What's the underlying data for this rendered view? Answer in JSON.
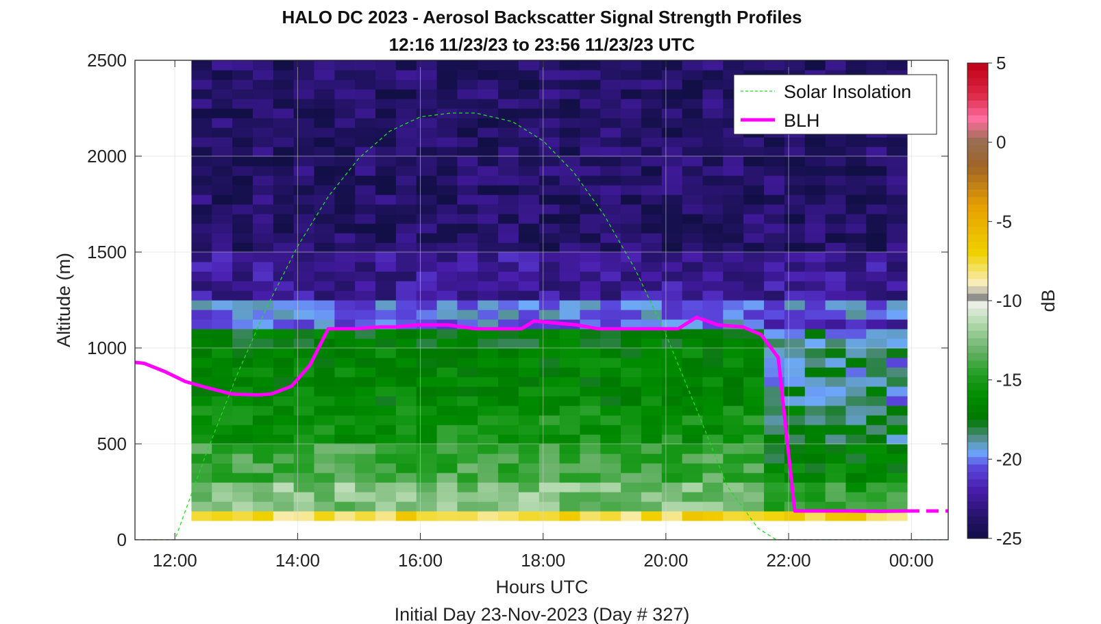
{
  "chart_data": {
    "type": "heatmap",
    "title": "HALO DC 2023 - Aerosol Backscatter Signal Strength Profiles",
    "subtitle": "12:16 11/23/23 to 23:56 11/23/23  UTC",
    "xlabel": "Hours UTC",
    "footer": "Initial Day 23-Nov-2023 (Day # 327)",
    "ylabel": "Altitude (m)",
    "colorbar_label": "dB",
    "xlim_hours": [
      11.35,
      24.6
    ],
    "ylim": [
      0,
      2500
    ],
    "clim": [
      -25,
      5
    ],
    "x_ticks": [
      {
        "value": 12,
        "label": "12:00"
      },
      {
        "value": 14,
        "label": "14:00"
      },
      {
        "value": 16,
        "label": "16:00"
      },
      {
        "value": 18,
        "label": "18:00"
      },
      {
        "value": 20,
        "label": "20:00"
      },
      {
        "value": 22,
        "label": "22:00"
      },
      {
        "value": 24,
        "label": "00:00"
      }
    ],
    "y_ticks": [
      {
        "value": 0,
        "label": "0"
      },
      {
        "value": 500,
        "label": "500"
      },
      {
        "value": 1000,
        "label": "1000"
      },
      {
        "value": 1500,
        "label": "1500"
      },
      {
        "value": 2000,
        "label": "2000"
      },
      {
        "value": 2500,
        "label": "2500"
      }
    ],
    "colorbar_ticks": [
      {
        "value": 5,
        "label": "5"
      },
      {
        "value": 0,
        "label": "0"
      },
      {
        "value": -5,
        "label": "-5"
      },
      {
        "value": -10,
        "label": "-10"
      },
      {
        "value": -15,
        "label": "-15"
      },
      {
        "value": -20,
        "label": "-20"
      },
      {
        "value": -25,
        "label": "-25"
      }
    ],
    "grid": true,
    "legend_position": "top-right",
    "heatmap": {
      "time_start_hours": 12.27,
      "time_end_hours": 23.93,
      "altitude_bins_m": [
        100,
        150,
        200,
        250,
        300,
        350,
        400,
        450,
        500,
        550,
        600,
        650,
        700,
        750,
        800,
        850,
        900,
        950,
        1000,
        1050,
        1100,
        1150,
        1200,
        1250,
        1300,
        1350,
        1400,
        1450,
        1500,
        1550,
        1600,
        1650,
        1700,
        1750,
        1800,
        1850,
        1900,
        1950,
        2000,
        2050,
        2100,
        2150,
        2200,
        2250,
        2300,
        2350,
        2400,
        2450,
        2500
      ],
      "layer_profile_db": [
        {
          "top_m": 150,
          "db": -7.5
        },
        {
          "top_m": 300,
          "db": -12.5
        },
        {
          "top_m": 500,
          "db": -14.0
        },
        {
          "top_m": 700,
          "db": -15.5
        },
        {
          "top_m": 1000,
          "db": -16.5
        },
        {
          "top_m": 1100,
          "db": -17.0
        },
        {
          "top_m": 1250,
          "db": -20.0
        },
        {
          "top_m": 1500,
          "db": -22.5
        },
        {
          "top_m": 2500,
          "db": -23.8
        }
      ]
    },
    "series": [
      {
        "name": "Solar Insolation",
        "style": "dashed",
        "color": "#22dd22",
        "x": [
          11.35,
          12.0,
          12.0,
          12.5,
          13.0,
          13.5,
          14.0,
          14.5,
          15.0,
          15.5,
          16.0,
          16.5,
          16.9,
          17.5,
          18.0,
          18.5,
          19.0,
          19.5,
          20.0,
          20.5,
          21.0,
          21.5,
          21.8,
          21.8,
          24.6
        ],
        "y": [
          0,
          0,
          0,
          440,
          850,
          1215,
          1530,
          1790,
          1990,
          2130,
          2205,
          2225,
          2225,
          2180,
          2080,
          1915,
          1690,
          1410,
          1070,
          680,
          280,
          60,
          0,
          0,
          0
        ]
      },
      {
        "name": "BLH",
        "style": "solid",
        "color": "#ff00ff",
        "x": [
          11.35,
          11.5,
          11.85,
          12.17,
          12.5,
          12.93,
          13.35,
          13.57,
          13.9,
          14.2,
          14.5,
          14.93,
          15.35,
          15.6,
          15.95,
          16.45,
          16.9,
          17.35,
          17.65,
          17.85,
          18.2,
          18.55,
          18.9,
          19.3,
          19.7,
          20.2,
          20.5,
          20.85,
          21.25,
          21.55,
          21.83,
          22.1,
          22.4,
          23.0,
          23.5,
          23.93
        ],
        "y": [
          925,
          920,
          875,
          825,
          795,
          760,
          755,
          760,
          800,
          910,
          1100,
          1100,
          1110,
          1110,
          1120,
          1120,
          1100,
          1100,
          1100,
          1140,
          1130,
          1120,
          1100,
          1100,
          1100,
          1100,
          1160,
          1120,
          1110,
          1070,
          950,
          150,
          150,
          150,
          148,
          150
        ]
      }
    ]
  }
}
